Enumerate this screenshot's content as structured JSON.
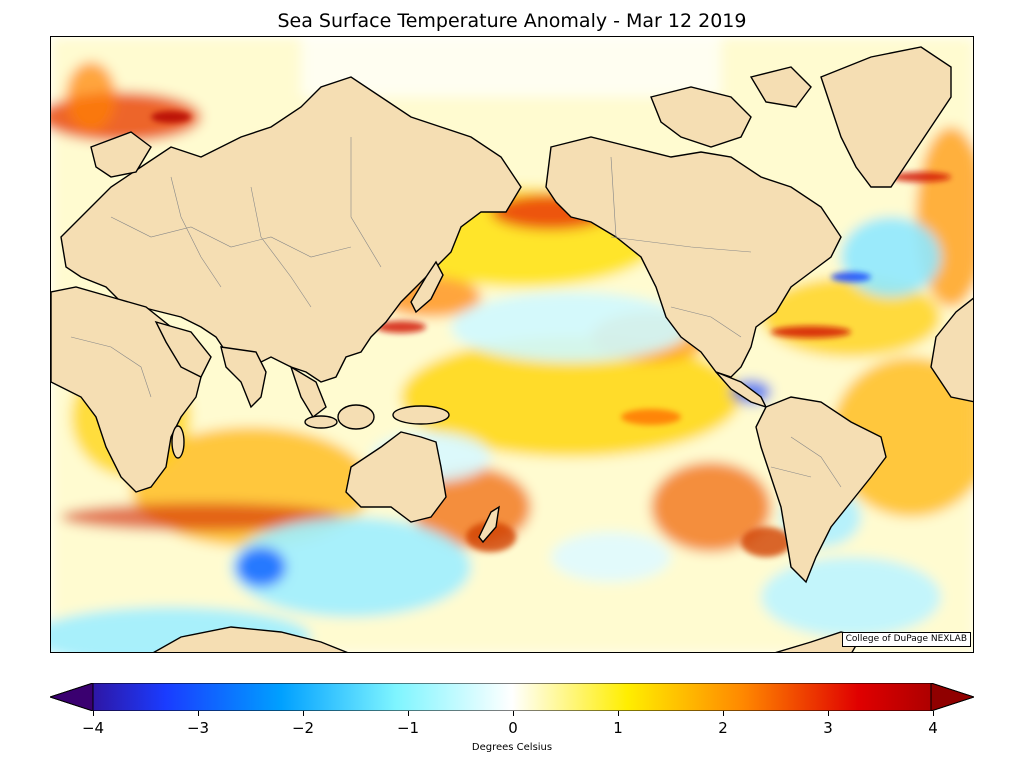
{
  "title": "Sea Surface Temperature Anomaly - Mar 12 2019",
  "credit": "College of DuPage NEXLAB",
  "colorbar": {
    "label": "Degrees Celsius",
    "min": -4,
    "max": 4,
    "ticks": [
      "−4",
      "−3",
      "−2",
      "−1",
      "0",
      "1",
      "2",
      "3",
      "4"
    ],
    "tick_values": [
      -4,
      -3,
      -2,
      -1,
      0,
      1,
      2,
      3,
      4
    ],
    "color_stops": [
      "#3a0070",
      "#1a3cff",
      "#00a0ff",
      "#7ff5ff",
      "#ffffff",
      "#ffee00",
      "#ff8800",
      "#e00000",
      "#900000"
    ]
  },
  "map": {
    "projection": "Miller cylindrical, Pacific-centered",
    "land_color": "#f5deb3",
    "ocean_neutral_color": "#ffffff"
  }
}
